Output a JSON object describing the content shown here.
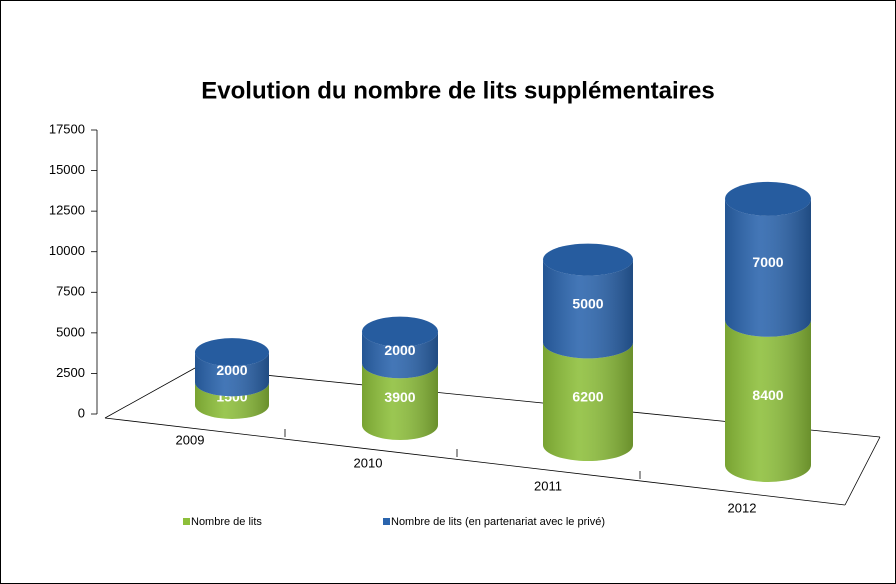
{
  "chart_data": {
    "type": "bar3d-stacked",
    "title": "Evolution du nombre de lits supplémentaires",
    "categories": [
      "2009",
      "2010",
      "2011",
      "2012"
    ],
    "series": [
      {
        "name": "Nombre de lits",
        "color": "#8dbf3a",
        "values": [
          1500,
          3900,
          6200,
          8400
        ]
      },
      {
        "name": "Nombre de lits (en partenariat avec le privé)",
        "color": "#2a64ad",
        "values": [
          2000,
          2000,
          5000,
          7000
        ]
      }
    ],
    "ylim": [
      0,
      17500
    ],
    "yticks": [
      0,
      2500,
      5000,
      7500,
      10000,
      12500,
      15000,
      17500
    ],
    "stacked": true,
    "legend": "bottom"
  }
}
